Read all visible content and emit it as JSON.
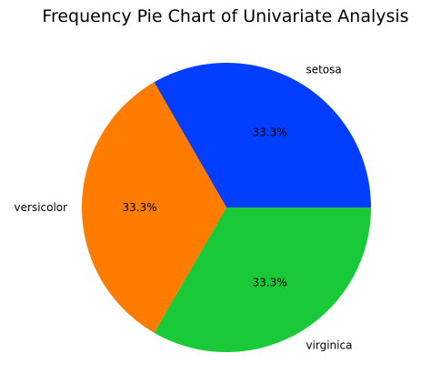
{
  "chart_data": {
    "type": "pie",
    "title": "Frequency Pie Chart of Univariate Analysis",
    "slices": [
      {
        "label": "setosa",
        "value": 33.3,
        "percent_label": "33.3%",
        "color": "#023eff"
      },
      {
        "label": "versicolor",
        "value": 33.3,
        "percent_label": "33.3%",
        "color": "#ff7c00"
      },
      {
        "label": "virginica",
        "value": 33.3,
        "percent_label": "33.3%",
        "color": "#1ac938"
      }
    ],
    "start_angle_deg": 0,
    "direction": "counterclockwise",
    "legend": "none"
  }
}
